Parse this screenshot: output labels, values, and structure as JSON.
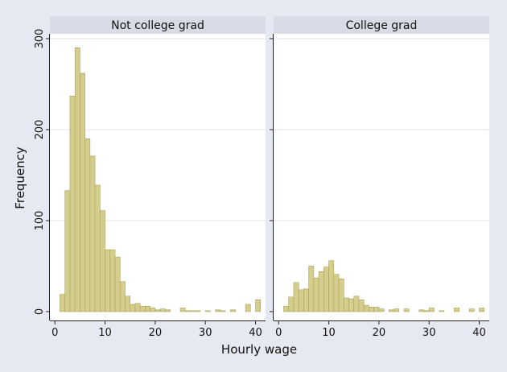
{
  "chart_data": {
    "type": "bar",
    "xlabel": "Hourly wage",
    "ylabel": "Frequency",
    "ylim": [
      0,
      320
    ],
    "y_ticks": [
      0,
      100,
      200,
      300
    ],
    "x_ticks": [
      0,
      10,
      20,
      30,
      40
    ],
    "xlim": [
      -1,
      42
    ],
    "bin_width": 1,
    "grid": true,
    "bar_color": "#d4cd8c",
    "bar_edge_color": "#a8a363",
    "panel_header_color": "#d9dce6",
    "panels": [
      {
        "title": "Not college grad",
        "bins": [
          {
            "x": 1,
            "y": 19
          },
          {
            "x": 2,
            "y": 133
          },
          {
            "x": 3,
            "y": 237
          },
          {
            "x": 4,
            "y": 290
          },
          {
            "x": 5,
            "y": 262
          },
          {
            "x": 6,
            "y": 190
          },
          {
            "x": 7,
            "y": 171
          },
          {
            "x": 8,
            "y": 139
          },
          {
            "x": 9,
            "y": 111
          },
          {
            "x": 10,
            "y": 68
          },
          {
            "x": 11,
            "y": 68
          },
          {
            "x": 12,
            "y": 60
          },
          {
            "x": 13,
            "y": 33
          },
          {
            "x": 14,
            "y": 17
          },
          {
            "x": 15,
            "y": 8
          },
          {
            "x": 16,
            "y": 9
          },
          {
            "x": 17,
            "y": 6
          },
          {
            "x": 18,
            "y": 6
          },
          {
            "x": 19,
            "y": 4
          },
          {
            "x": 20,
            "y": 2
          },
          {
            "x": 21,
            "y": 3
          },
          {
            "x": 22,
            "y": 2
          },
          {
            "x": 25,
            "y": 4
          },
          {
            "x": 26,
            "y": 1
          },
          {
            "x": 27,
            "y": 1
          },
          {
            "x": 28,
            "y": 1
          },
          {
            "x": 30,
            "y": 1
          },
          {
            "x": 32,
            "y": 2
          },
          {
            "x": 33,
            "y": 1
          },
          {
            "x": 35,
            "y": 2
          },
          {
            "x": 38,
            "y": 8
          },
          {
            "x": 40,
            "y": 13
          }
        ]
      },
      {
        "title": "College grad",
        "bins": [
          {
            "x": 1,
            "y": 6
          },
          {
            "x": 2,
            "y": 16
          },
          {
            "x": 3,
            "y": 32
          },
          {
            "x": 4,
            "y": 24
          },
          {
            "x": 5,
            "y": 25
          },
          {
            "x": 6,
            "y": 50
          },
          {
            "x": 7,
            "y": 37
          },
          {
            "x": 8,
            "y": 44
          },
          {
            "x": 9,
            "y": 49
          },
          {
            "x": 10,
            "y": 56
          },
          {
            "x": 11,
            "y": 41
          },
          {
            "x": 12,
            "y": 36
          },
          {
            "x": 13,
            "y": 15
          },
          {
            "x": 14,
            "y": 14
          },
          {
            "x": 15,
            "y": 17
          },
          {
            "x": 16,
            "y": 13
          },
          {
            "x": 17,
            "y": 7
          },
          {
            "x": 18,
            "y": 5
          },
          {
            "x": 19,
            "y": 5
          },
          {
            "x": 20,
            "y": 3
          },
          {
            "x": 22,
            "y": 2
          },
          {
            "x": 23,
            "y": 3
          },
          {
            "x": 25,
            "y": 3
          },
          {
            "x": 28,
            "y": 2
          },
          {
            "x": 29,
            "y": 1
          },
          {
            "x": 30,
            "y": 4
          },
          {
            "x": 32,
            "y": 1
          },
          {
            "x": 35,
            "y": 4
          },
          {
            "x": 38,
            "y": 3
          },
          {
            "x": 40,
            "y": 4
          }
        ]
      }
    ]
  }
}
